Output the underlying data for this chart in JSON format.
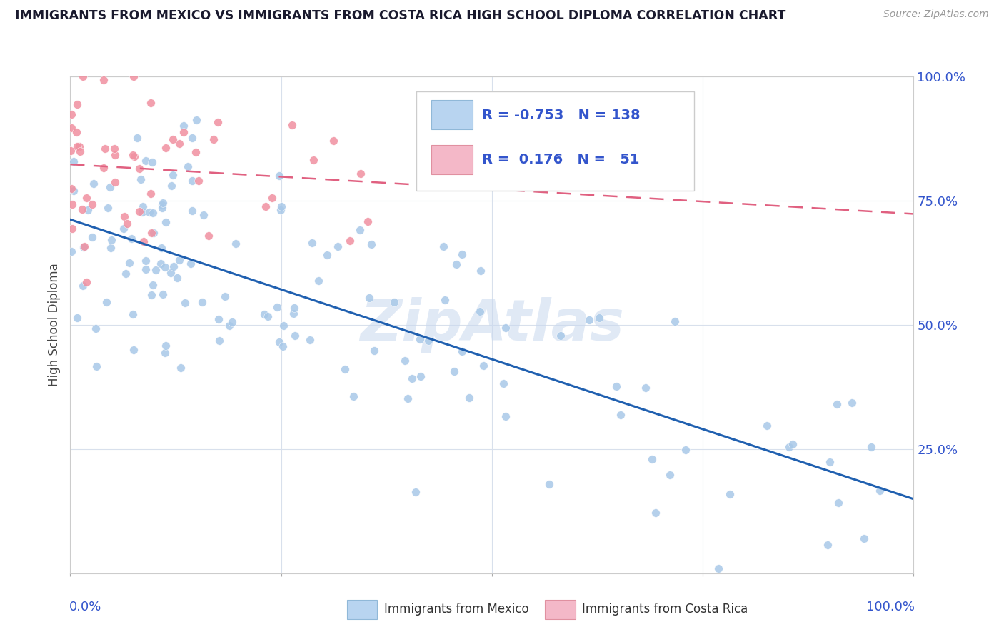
{
  "title": "IMMIGRANTS FROM MEXICO VS IMMIGRANTS FROM COSTA RICA HIGH SCHOOL DIPLOMA CORRELATION CHART",
  "source": "Source: ZipAtlas.com",
  "ylabel": "High School Diploma",
  "blue_R": -0.753,
  "blue_N": 138,
  "pink_R": 0.176,
  "pink_N": 51,
  "blue_color": "#a8c8e8",
  "pink_color": "#f090a0",
  "blue_line_color": "#2060b0",
  "pink_line_color": "#e06080",
  "legend_blue_fill": "#b8d4f0",
  "legend_pink_fill": "#f4b8c8",
  "watermark": "ZipAtlas",
  "watermark_color": "#c8d8ee",
  "right_tick_color": "#3355cc",
  "title_color": "#1a1a2e",
  "grid_color": "#d8e0ec",
  "seed": 12345,
  "y_right_labels": [
    "",
    "25.0%",
    "50.0%",
    "75.0%",
    "100.0%"
  ],
  "y_ticks": [
    0.0,
    0.25,
    0.5,
    0.75,
    1.0
  ]
}
